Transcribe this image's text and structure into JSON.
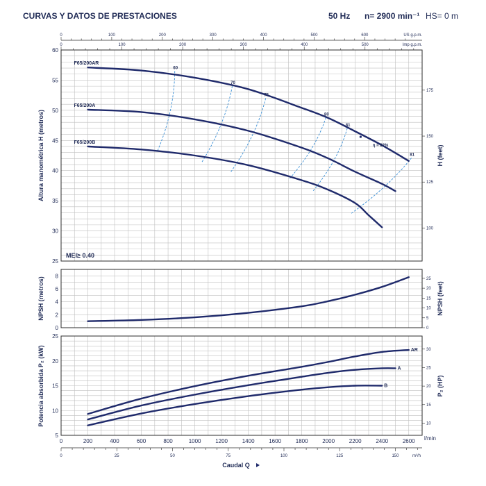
{
  "header": {
    "title": "CURVAS Y DATOS DE PRESTACIONES",
    "hz": "50 Hz",
    "speed": "n= 2900 min⁻¹",
    "hs": "HS= 0 m"
  },
  "colors": {
    "curve": "#1f2a6b",
    "grid": "#bfbfbf",
    "eff": "#3a8fd6",
    "text": "#1f2a55"
  },
  "chart_data": {
    "type": "line",
    "x": {
      "label": "Caudal Q",
      "unit": "l/min",
      "range": [
        0,
        2700
      ],
      "ticks": [
        "0",
        "200",
        "400",
        "600",
        "800",
        "1000",
        "1200",
        "1400",
        "1600",
        "1800",
        "2000",
        "2200",
        "2400",
        "2600"
      ],
      "m3h_unit": "m³/h",
      "m3h_ticks": [
        "0",
        "25",
        "50",
        "75",
        "100",
        "125",
        "150"
      ],
      "us_gpm_label": "US g.p.m.",
      "us_gpm_ticks": [
        "0",
        "100",
        "200",
        "300",
        "400",
        "500",
        "600"
      ],
      "imp_gpm_label": "Imp g.p.m.",
      "imp_gpm_ticks": [
        "0",
        "100",
        "200",
        "300",
        "400",
        "500"
      ]
    },
    "head": {
      "ylabel": "Altura manométrica H (metros)",
      "ylabel_right": "H (feet)",
      "ylim": [
        25,
        60
      ],
      "yticks": [
        "25",
        "30",
        "35",
        "40",
        "45",
        "50",
        "55",
        "60"
      ],
      "yticks_right": [
        "100",
        "125",
        "150",
        "175"
      ],
      "mei": "MEI≥ 0.40",
      "series": [
        {
          "name": "F65/200AR",
          "x": [
            200,
            600,
            1000,
            1400,
            1800,
            2000,
            2200,
            2400,
            2600
          ],
          "y": [
            57.1,
            56.6,
            55.4,
            53.5,
            50.4,
            48.7,
            46.5,
            44.2,
            41.6
          ]
        },
        {
          "name": "F65/200A",
          "x": [
            200,
            600,
            1000,
            1400,
            1800,
            2000,
            2200,
            2400,
            2500
          ],
          "y": [
            50.1,
            49.7,
            48.5,
            46.6,
            43.8,
            42.0,
            39.8,
            37.8,
            36.6
          ]
        },
        {
          "name": "F65/200B",
          "x": [
            200,
            600,
            1000,
            1400,
            1800,
            2000,
            2200,
            2300,
            2400
          ],
          "y": [
            44.0,
            43.5,
            42.5,
            40.9,
            38.4,
            36.8,
            34.6,
            32.6,
            30.6
          ]
        }
      ],
      "efficiency": {
        "label": "η = 82%",
        "lines": [
          {
            "label": "60",
            "x": [
              850,
              720
            ],
            "y": [
              56.5,
              43.2
            ]
          },
          {
            "label": "70",
            "x": [
              1280,
              1050
            ],
            "y": [
              54.0,
              41.3
            ]
          },
          {
            "label": "75",
            "x": [
              1530,
              1270
            ],
            "y": [
              52.0,
              39.8
            ]
          },
          {
            "label": "80",
            "x": [
              1980,
              1710
            ],
            "y": [
              48.8,
              38.7
            ]
          },
          {
            "label": "81",
            "x": [
              2140,
              1880
            ],
            "y": [
              47.0,
              36.5
            ]
          },
          {
            "label": "81",
            "x": [
              2620,
              2170
            ],
            "y": [
              42.1,
              32.9
            ]
          }
        ]
      }
    },
    "npsh": {
      "ylabel": "NPSH (metros)",
      "ylabel_right": "NPSH (feet)",
      "ylim": [
        0,
        9
      ],
      "yticks": [
        "0",
        "2",
        "4",
        "6",
        "8"
      ],
      "yticks_right": [
        "0",
        "5",
        "10",
        "15",
        "20",
        "25"
      ],
      "series": [
        {
          "name": "NPSH",
          "x": [
            200,
            600,
            1000,
            1400,
            1800,
            2000,
            2200,
            2400,
            2600
          ],
          "y": [
            1.0,
            1.2,
            1.6,
            2.3,
            3.3,
            4.1,
            5.1,
            6.3,
            7.8
          ]
        }
      ]
    },
    "power": {
      "ylabel": "Potencia absorbida P₂ (kW)",
      "ylabel_right": "P₂ (HP)",
      "ylim": [
        5,
        25
      ],
      "yticks": [
        "5",
        "10",
        "15",
        "20",
        "25"
      ],
      "yticks_right": [
        "10",
        "15",
        "20",
        "25",
        "30"
      ],
      "series": [
        {
          "name": "AR",
          "x": [
            200,
            600,
            1000,
            1400,
            1800,
            2000,
            2200,
            2400,
            2600
          ],
          "y": [
            9.3,
            12.4,
            14.9,
            17.0,
            18.8,
            19.8,
            20.9,
            21.8,
            22.2
          ]
        },
        {
          "name": "A",
          "x": [
            200,
            600,
            1000,
            1400,
            1800,
            2000,
            2200,
            2400,
            2500
          ],
          "y": [
            8.2,
            11.0,
            13.2,
            15.1,
            16.8,
            17.6,
            18.2,
            18.5,
            18.5
          ]
        },
        {
          "name": "B",
          "x": [
            200,
            600,
            1000,
            1400,
            1800,
            2000,
            2200,
            2400
          ],
          "y": [
            7.0,
            9.4,
            11.3,
            12.9,
            14.2,
            14.7,
            15.0,
            15.0
          ]
        }
      ]
    }
  }
}
